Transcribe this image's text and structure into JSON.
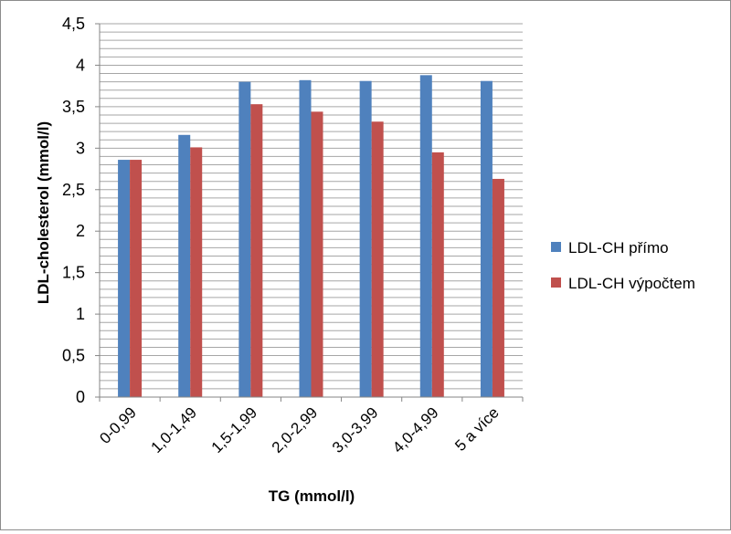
{
  "chart_data": {
    "type": "bar",
    "title": "",
    "xlabel": "TG (mmol/l)",
    "ylabel": "LDL-cholesterol (mmol/l)",
    "ylim": [
      0,
      4.5
    ],
    "y_tick_step": 0.1,
    "y_label_step": 0.5,
    "y_tick_labels": [
      "0",
      "0,5",
      "1",
      "1,5",
      "2",
      "2,5",
      "3",
      "3,5",
      "4",
      "4,5"
    ],
    "categories": [
      "0-0,99",
      "1,0-1,49",
      "1,5-1,99",
      "2,0-2,99",
      "3,0-3,99",
      "4,0-4,99",
      "5 a více"
    ],
    "series": [
      {
        "name": "LDL-CH přímo",
        "color": "#4f81bd",
        "values": [
          2.86,
          3.16,
          3.8,
          3.82,
          3.81,
          3.88,
          3.81
        ]
      },
      {
        "name": "LDL-CH výpočtem",
        "color": "#c0504d",
        "values": [
          2.86,
          3.01,
          3.53,
          3.44,
          3.32,
          2.95,
          2.63
        ]
      }
    ],
    "grid": true,
    "legend_position": "right"
  }
}
